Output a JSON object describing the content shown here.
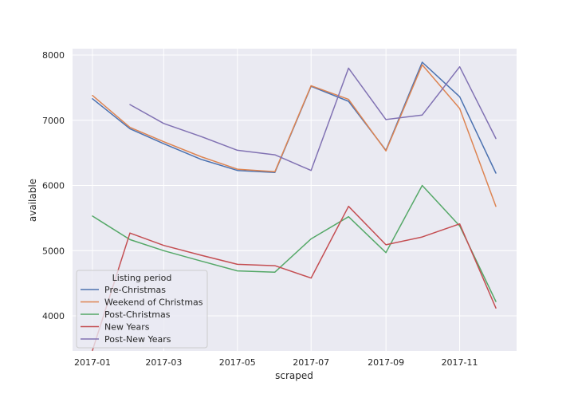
{
  "chart_data": {
    "type": "line",
    "xlabel": "scraped",
    "ylabel": "available",
    "x": [
      "2017-01",
      "2017-02",
      "2017-03",
      "2017-04",
      "2017-05",
      "2017-06",
      "2017-07",
      "2017-08",
      "2017-09",
      "2017-10",
      "2017-11",
      "2017-12"
    ],
    "x_ticks": [
      "2017-01",
      "2017-03",
      "2017-05",
      "2017-07",
      "2017-09",
      "2017-11"
    ],
    "y_ticks": [
      4000,
      5000,
      6000,
      7000,
      8000
    ],
    "ylim": [
      3500,
      8100
    ],
    "grid": true,
    "legend": {
      "title": "Listing period",
      "placement": "lower-left"
    },
    "series": [
      {
        "name": "Pre-Christmas",
        "color": "#4c72b0",
        "x": [
          "2017-01",
          "2017-02",
          "2017-03",
          "2017-04",
          "2017-05",
          "2017-06",
          "2017-07",
          "2017-08",
          "2017-09",
          "2017-10",
          "2017-10-15",
          "2017-11",
          "2017-12"
        ],
        "values": [
          7330,
          6870,
          6640,
          6400,
          6230,
          6200,
          7520,
          7290,
          6540,
          7890,
          7650,
          7360,
          6190
        ]
      },
      {
        "name": "Weekend of Christmas",
        "color": "#dd8452",
        "x": [
          "2017-01",
          "2017-02",
          "2017-03",
          "2017-04",
          "2017-05",
          "2017-06",
          "2017-07",
          "2017-08",
          "2017-09",
          "2017-10",
          "2017-11",
          "2017-12"
        ],
        "values": [
          7380,
          6890,
          6670,
          6440,
          6250,
          6210,
          7530,
          7320,
          6530,
          7850,
          7180,
          5680
        ]
      },
      {
        "name": "Post-Christmas",
        "color": "#55a868",
        "x": [
          "2017-01",
          "2017-02",
          "2017-03",
          "2017-04",
          "2017-05",
          "2017-06",
          "2017-07",
          "2017-08",
          "2017-09",
          "2017-10",
          "2017-11",
          "2017-12"
        ],
        "values": [
          5530,
          5170,
          5000,
          4840,
          4690,
          4670,
          5180,
          5520,
          4970,
          6000,
          5380,
          4220
        ]
      },
      {
        "name": "New Years",
        "color": "#c44e52",
        "x": [
          "2017-01",
          "2017-02",
          "2017-03",
          "2017-04",
          "2017-05",
          "2017-06",
          "2017-07",
          "2017-08",
          "2017-09",
          "2017-10",
          "2017-11",
          "2017-12"
        ],
        "values": [
          3470,
          5270,
          5080,
          4930,
          4790,
          4770,
          4580,
          5680,
          5090,
          5210,
          5410,
          4120
        ]
      },
      {
        "name": "Post-New Years",
        "color": "#8172b3",
        "x": [
          "2017-02",
          "2017-03",
          "2017-04",
          "2017-05",
          "2017-06",
          "2017-07",
          "2017-08",
          "2017-09",
          "2017-10",
          "2017-11",
          "2017-12"
        ],
        "values": [
          7240,
          6950,
          6750,
          6540,
          6470,
          6230,
          7800,
          7010,
          7080,
          7820,
          6720
        ]
      }
    ]
  }
}
